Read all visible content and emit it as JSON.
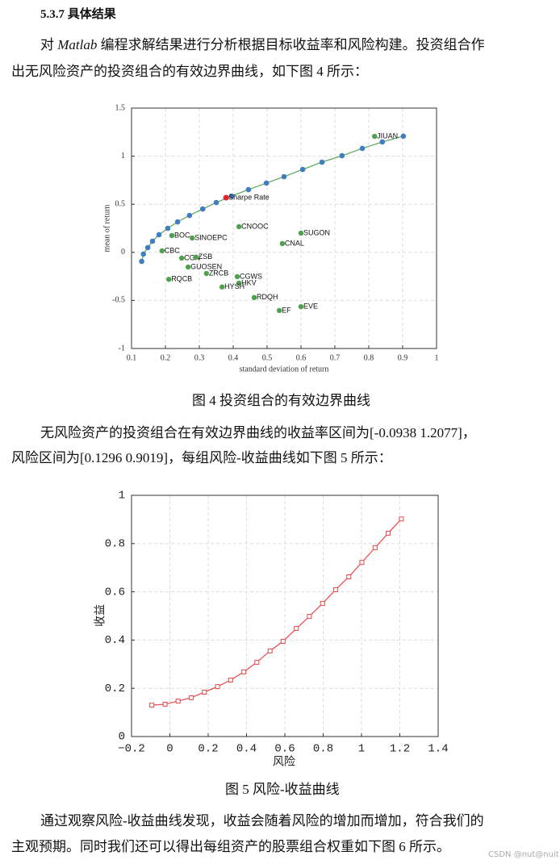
{
  "heading": "5.3.7 具体结果",
  "intro": {
    "lead": "对 ",
    "emphasis": "Matlab",
    "rest": " 编程求解结果进行分析根据目标收益率和风险构建。投资组合作",
    "line2": "出无风险资产的投资组合的有效边界曲线，如下图 4 所示："
  },
  "caption1": "图 4 投资组合的有效边界曲线",
  "middle": {
    "line1": "无风险资产的投资组合在有效边界曲线的收益率区间为[-0.0938 1.2077]，",
    "line2": "风险区间为[0.1296 0.9019]，每组风险-收益曲线如下图 5 所示："
  },
  "caption2": "图 5 风险-收益曲线",
  "closing": {
    "line1": "通过观察风险-收益曲线发现，收益会随着风险的增加而增加，符合我们的",
    "line2": "主观预期。同时我们还可以得出每组资产的股票组合权重如下图 6 所示。"
  },
  "watermark": "CSDN @nut@nuit",
  "chart_data": [
    {
      "type": "scatter",
      "xlabel": "standard deviation of return",
      "ylabel": "mean of return",
      "xlim": [
        0.1,
        1
      ],
      "xticks": [
        0.1,
        0.2,
        0.3,
        0.4,
        0.5,
        0.6,
        0.7,
        0.8,
        0.9,
        1
      ],
      "ylim": [
        -1,
        1.5
      ],
      "yticks": [
        -1,
        -0.5,
        0,
        0.5,
        1,
        1.5
      ],
      "grid": true,
      "frontier": {
        "line_color": "#5aa55a",
        "marker_color": "#3f7fbf",
        "x": [
          0.13,
          0.135,
          0.148,
          0.162,
          0.181,
          0.207,
          0.236,
          0.271,
          0.31,
          0.35,
          0.395,
          0.445,
          0.498,
          0.55,
          0.605,
          0.662,
          0.721,
          0.781,
          0.84,
          0.902
        ],
        "y": [
          -0.094,
          -0.018,
          0.049,
          0.116,
          0.183,
          0.25,
          0.317,
          0.384,
          0.451,
          0.518,
          0.585,
          0.652,
          0.72,
          0.787,
          0.862,
          0.938,
          1.005,
          1.081,
          1.148,
          1.208
        ]
      },
      "optimal": {
        "label": "Sharpe Rate",
        "x": 0.379,
        "y": 0.569,
        "color": "#e8202a"
      },
      "assets": {
        "color": "#4ea24e",
        "labels": [
          "JIUAN",
          "CNOOC",
          "SUGON",
          "BOC",
          "SINOEPC",
          "CNAL",
          "CBC",
          "CGN",
          "ZSB",
          "GUOSEN",
          "ZRCB",
          "RQCB",
          "CGWS",
          "HKV",
          "HYSH",
          "RDQH",
          "EVE",
          "EF"
        ],
        "x": [
          0.817,
          0.417,
          0.6,
          0.219,
          0.279,
          0.545,
          0.19,
          0.248,
          0.29,
          0.267,
          0.321,
          0.21,
          0.412,
          0.417,
          0.367,
          0.462,
          0.6,
          0.536
        ],
        "y": [
          1.206,
          0.267,
          0.2,
          0.175,
          0.149,
          0.091,
          0.015,
          -0.06,
          -0.05,
          -0.153,
          -0.22,
          -0.28,
          -0.253,
          -0.32,
          -0.36,
          -0.47,
          -0.565,
          -0.605
        ]
      }
    },
    {
      "type": "line",
      "xlabel": "风险",
      "ylabel": "收益",
      "xlim": [
        -0.2,
        1.4
      ],
      "xticks": [
        {
          "value": -0.2,
          "label": "−0.2"
        },
        0,
        0.2,
        0.4,
        0.6,
        0.8,
        1,
        1.2,
        1.4
      ],
      "ylim": [
        0,
        1
      ],
      "yticks": [
        0,
        0.2,
        0.4,
        0.6,
        0.8,
        1
      ],
      "grid": true,
      "color": "#e8474a",
      "x": [
        -0.094,
        -0.025,
        0.043,
        0.112,
        0.18,
        0.249,
        0.317,
        0.386,
        0.454,
        0.523,
        0.591,
        0.66,
        0.728,
        0.797,
        0.865,
        0.934,
        1.002,
        1.071,
        1.139,
        1.208
      ],
      "values": [
        0.13,
        0.134,
        0.147,
        0.161,
        0.184,
        0.207,
        0.234,
        0.268,
        0.308,
        0.355,
        0.395,
        0.448,
        0.498,
        0.552,
        0.609,
        0.662,
        0.722,
        0.783,
        0.843,
        0.902
      ]
    }
  ]
}
